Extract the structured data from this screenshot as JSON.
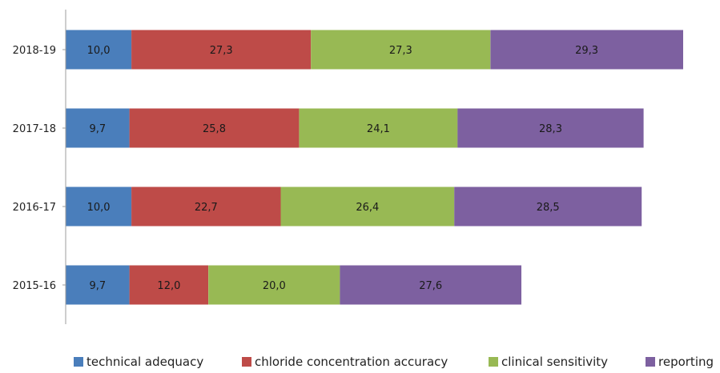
{
  "chart_data": {
    "type": "bar",
    "orientation": "horizontal",
    "stacked": true,
    "categories": [
      "2018-19",
      "2017-18",
      "2016-17",
      "2015-16"
    ],
    "series": [
      {
        "name": "technical adequacy",
        "color": "#4a7ebb",
        "values": [
          10.0,
          9.7,
          10.0,
          9.7
        ],
        "labels": [
          "10,0",
          "9,7",
          "10,0",
          "9,7"
        ]
      },
      {
        "name": "chloride concentration accuracy",
        "color": "#be4b48",
        "values": [
          27.3,
          25.8,
          22.7,
          12.0
        ],
        "labels": [
          "27,3",
          "25,8",
          "22,7",
          "12,0"
        ]
      },
      {
        "name": "clinical sensitivity",
        "color": "#98b954",
        "values": [
          27.3,
          24.1,
          26.4,
          20.0
        ],
        "labels": [
          "27,3",
          "24,1",
          "26,4",
          "20,0"
        ]
      },
      {
        "name": "reporting",
        "color": "#7d60a0",
        "values": [
          29.3,
          28.3,
          28.5,
          27.6
        ],
        "labels": [
          "29,3",
          "28,3",
          "28,5",
          "27,6"
        ]
      }
    ],
    "xlim": [
      0,
      100
    ],
    "grid": false,
    "legend_position": "bottom"
  }
}
